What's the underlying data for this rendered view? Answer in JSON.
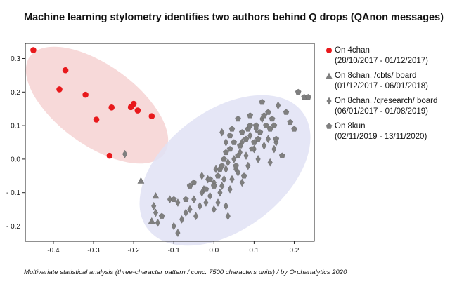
{
  "title": "Machine learning stylometry identifies two authors behind Q drops (QAnon messages)",
  "caption": "Multivariate statistical analysis (three-character pattern / conc. 7500 characters units) / by Orphanalytics 2020",
  "colors": {
    "red": "#e8191c",
    "gray": "#7f7f7f",
    "ellipse_red": "#f4cccc",
    "ellipse_blue": "#e0e2f5"
  },
  "legend": [
    {
      "marker": "circle",
      "color": "#e8191c",
      "label": "On 4chan",
      "dates": "(28/10/2017 - 01/12/2017)"
    },
    {
      "marker": "triangle",
      "color": "#7f7f7f",
      "label": "On 8chan, /cbts/ board",
      "dates": "(01/12/2017 - 06/01/2018)"
    },
    {
      "marker": "diamond",
      "color": "#7f7f7f",
      "label": "On 8chan, /qresearch/ board",
      "dates": "(06/01/2017 - 01/08/2019)"
    },
    {
      "marker": "pentagon",
      "color": "#7f7f7f",
      "label": "On 8kun",
      "dates": "(02/11/2019 - 13/11/2020)"
    }
  ],
  "chart_data": {
    "type": "scatter",
    "xlim": [
      -0.47,
      0.25
    ],
    "ylim": [
      -0.245,
      0.345
    ],
    "xticks": [
      -0.4,
      -0.3,
      -0.2,
      -0.1,
      0.0,
      0.1,
      0.2
    ],
    "yticks": [
      -0.2,
      -0.1,
      0.0,
      0.1,
      0.2,
      0.3
    ],
    "xticklabels": [
      "-0.4",
      "-0.3",
      "-0.2",
      "-0.1",
      "0.0",
      "0.1",
      "0.2"
    ],
    "yticklabels": [
      "- 0.2",
      "- 0.1",
      "0.0",
      "0.1",
      "0.2",
      "0.3"
    ],
    "grid": false,
    "legend_position": "right, outside plot",
    "series": [
      {
        "name": "On 4chan",
        "marker": "circle",
        "color": "#e8191c",
        "points": [
          [
            -0.45,
            0.325
          ],
          [
            -0.37,
            0.265
          ],
          [
            -0.385,
            0.208
          ],
          [
            -0.32,
            0.192
          ],
          [
            -0.293,
            0.118
          ],
          [
            -0.255,
            0.154
          ],
          [
            -0.2,
            0.165
          ],
          [
            -0.207,
            0.155
          ],
          [
            -0.19,
            0.145
          ],
          [
            -0.155,
            0.128
          ],
          [
            -0.26,
            0.01
          ]
        ]
      },
      {
        "name": "On 8chan, /cbts/ board",
        "marker": "triangle",
        "color": "#7f7f7f",
        "points": [
          [
            -0.182,
            -0.065
          ],
          [
            -0.145,
            -0.11
          ],
          [
            -0.155,
            -0.185
          ]
        ]
      },
      {
        "name": "On 8chan, /qresearch/ board",
        "marker": "diamond",
        "color": "#7f7f7f",
        "points": [
          [
            -0.222,
            0.015
          ],
          [
            -0.15,
            -0.14
          ],
          [
            -0.145,
            -0.16
          ],
          [
            -0.14,
            -0.19
          ],
          [
            -0.11,
            -0.12
          ],
          [
            -0.1,
            -0.2
          ],
          [
            -0.09,
            -0.22
          ],
          [
            -0.09,
            -0.13
          ],
          [
            -0.08,
            -0.18
          ],
          [
            -0.07,
            -0.16
          ],
          [
            -0.06,
            -0.15
          ],
          [
            -0.05,
            -0.12
          ],
          [
            -0.045,
            -0.17
          ],
          [
            -0.035,
            -0.14
          ],
          [
            -0.03,
            -0.1
          ],
          [
            -0.03,
            -0.05
          ],
          [
            -0.025,
            -0.09
          ],
          [
            -0.02,
            -0.13
          ],
          [
            -0.015,
            -0.06
          ],
          [
            -0.01,
            -0.11
          ],
          [
            0.0,
            -0.07
          ],
          [
            0.0,
            -0.15
          ],
          [
            0.005,
            -0.03
          ],
          [
            0.01,
            -0.13
          ],
          [
            0.015,
            -0.1
          ],
          [
            0.02,
            -0.08
          ],
          [
            0.025,
            -0.06
          ],
          [
            0.03,
            -0.03
          ],
          [
            0.03,
            -0.14
          ],
          [
            0.035,
            -0.01
          ],
          [
            0.035,
            -0.17
          ],
          [
            0.04,
            -0.09
          ],
          [
            0.045,
            -0.06
          ],
          [
            0.05,
            0.0
          ],
          [
            0.055,
            -0.03
          ],
          [
            0.06,
            -0.04
          ],
          [
            0.065,
            0.02
          ],
          [
            0.07,
            -0.07
          ],
          [
            0.07,
            0.05
          ],
          [
            0.08,
            0.01
          ],
          [
            0.085,
            -0.02
          ],
          [
            0.09,
            0.07
          ],
          [
            0.1,
            0.03
          ],
          [
            0.105,
            0.09
          ],
          [
            0.11,
            0.0
          ],
          [
            0.12,
            0.12
          ],
          [
            0.125,
            0.04
          ],
          [
            0.135,
            0.06
          ],
          [
            0.14,
            -0.01
          ],
          [
            0.15,
            0.03
          ],
          [
            0.155,
            0.05
          ],
          [
            0.16,
            0.16
          ],
          [
            0.03,
            0.05
          ],
          [
            0.02,
            0.08
          ]
        ]
      },
      {
        "name": "On 8kun",
        "marker": "pentagon",
        "color": "#7f7f7f",
        "points": [
          [
            -0.13,
            -0.17
          ],
          [
            -0.1,
            -0.12
          ],
          [
            -0.07,
            -0.12
          ],
          [
            -0.06,
            -0.08
          ],
          [
            -0.05,
            -0.07
          ],
          [
            -0.02,
            -0.09
          ],
          [
            -0.01,
            -0.06
          ],
          [
            0.0,
            -0.08
          ],
          [
            0.01,
            -0.05
          ],
          [
            0.015,
            -0.03
          ],
          [
            0.02,
            -0.02
          ],
          [
            0.025,
            0.0
          ],
          [
            0.03,
            0.02
          ],
          [
            0.04,
            0.07
          ],
          [
            0.045,
            0.09
          ],
          [
            0.05,
            0.05
          ],
          [
            0.055,
            -0.02
          ],
          [
            0.06,
            0.01
          ],
          [
            0.065,
            0.04
          ],
          [
            0.07,
            0.08
          ],
          [
            0.075,
            -0.05
          ],
          [
            0.08,
            0.06
          ],
          [
            0.085,
            0.09
          ],
          [
            0.09,
            0.1
          ],
          [
            0.095,
            0.03
          ],
          [
            0.1,
            0.05
          ],
          [
            0.105,
            0.1
          ],
          [
            0.11,
            0.06
          ],
          [
            0.115,
            0.08
          ],
          [
            0.12,
            0.17
          ],
          [
            0.125,
            0.13
          ],
          [
            0.13,
            0.1
          ],
          [
            0.135,
            0.14
          ],
          [
            0.14,
            0.09
          ],
          [
            0.145,
            0.12
          ],
          [
            0.15,
            0.1
          ],
          [
            0.155,
            0.06
          ],
          [
            0.17,
            0.01
          ],
          [
            0.18,
            0.14
          ],
          [
            0.19,
            0.11
          ],
          [
            0.2,
            0.09
          ],
          [
            0.21,
            0.2
          ],
          [
            0.225,
            0.185
          ],
          [
            0.235,
            0.185
          ],
          [
            0.09,
            0.13
          ],
          [
            0.06,
            0.12
          ],
          [
            0.04,
            0.03
          ]
        ]
      }
    ]
  }
}
